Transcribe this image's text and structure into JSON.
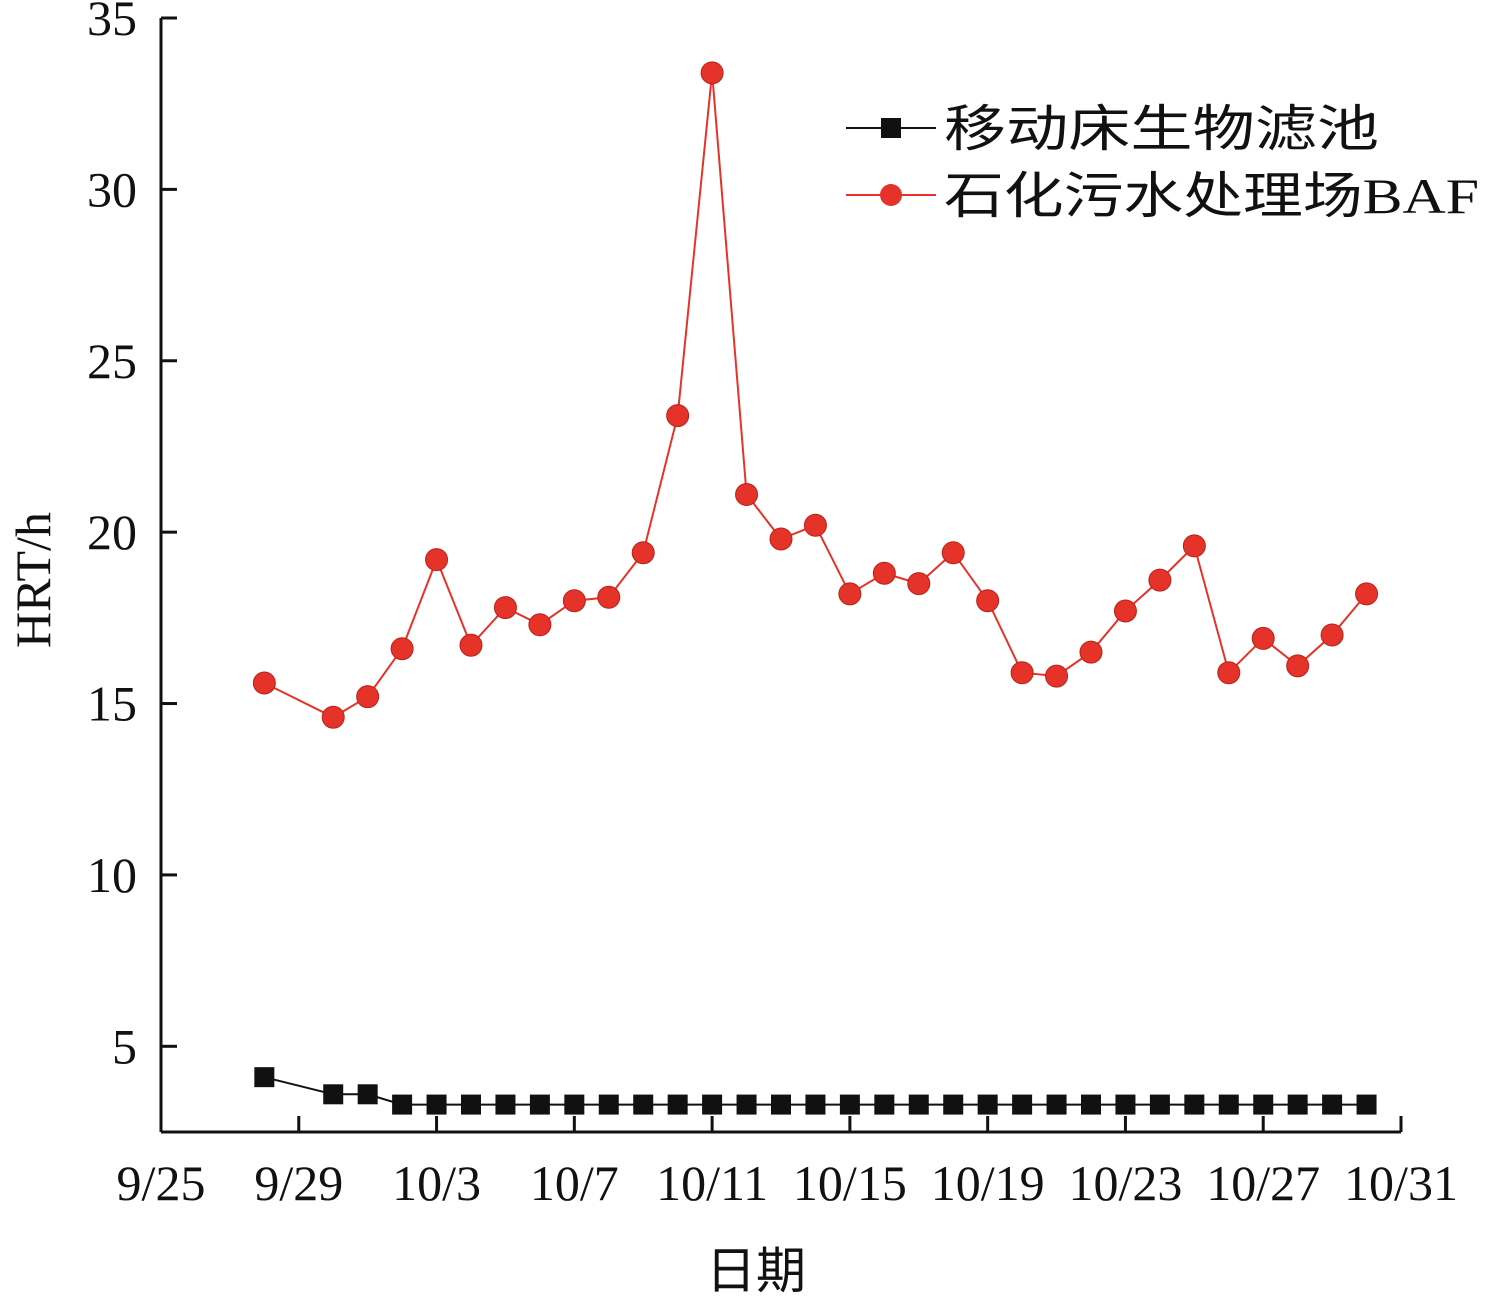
{
  "chart_data": {
    "type": "line",
    "title": "",
    "xlabel": "日期",
    "ylabel": "HRT/h",
    "x_ticks": [
      "9/25",
      "9/29",
      "10/3",
      "10/7",
      "10/11",
      "10/15",
      "10/19",
      "10/23",
      "10/27",
      "10/31"
    ],
    "y_ticks": [
      5,
      10,
      15,
      20,
      25,
      30,
      35
    ],
    "xlim": [
      "9/25",
      "10/31"
    ],
    "ylim": [
      2.5,
      35
    ],
    "grid": false,
    "legend_position": "top-right",
    "series": [
      {
        "name": "移动床生物滤池",
        "color": "#111111",
        "marker": "square",
        "points": [
          {
            "x": "9/28",
            "y": 4.1
          },
          {
            "x": "9/30",
            "y": 3.6
          },
          {
            "x": "10/1",
            "y": 3.6
          },
          {
            "x": "10/2",
            "y": 3.3
          },
          {
            "x": "10/3",
            "y": 3.3
          },
          {
            "x": "10/4",
            "y": 3.3
          },
          {
            "x": "10/5",
            "y": 3.3
          },
          {
            "x": "10/6",
            "y": 3.3
          },
          {
            "x": "10/7",
            "y": 3.3
          },
          {
            "x": "10/8",
            "y": 3.3
          },
          {
            "x": "10/9",
            "y": 3.3
          },
          {
            "x": "10/10",
            "y": 3.3
          },
          {
            "x": "10/11",
            "y": 3.3
          },
          {
            "x": "10/12",
            "y": 3.3
          },
          {
            "x": "10/13",
            "y": 3.3
          },
          {
            "x": "10/14",
            "y": 3.3
          },
          {
            "x": "10/15",
            "y": 3.3
          },
          {
            "x": "10/16",
            "y": 3.3
          },
          {
            "x": "10/17",
            "y": 3.3
          },
          {
            "x": "10/18",
            "y": 3.3
          },
          {
            "x": "10/19",
            "y": 3.3
          },
          {
            "x": "10/20",
            "y": 3.3
          },
          {
            "x": "10/21",
            "y": 3.3
          },
          {
            "x": "10/22",
            "y": 3.3
          },
          {
            "x": "10/23",
            "y": 3.3
          },
          {
            "x": "10/24",
            "y": 3.3
          },
          {
            "x": "10/25",
            "y": 3.3
          },
          {
            "x": "10/26",
            "y": 3.3
          },
          {
            "x": "10/27",
            "y": 3.3
          },
          {
            "x": "10/28",
            "y": 3.3
          },
          {
            "x": "10/29",
            "y": 3.3
          },
          {
            "x": "10/30",
            "y": 3.3
          }
        ]
      },
      {
        "name": "石化污水处理场BAF",
        "color": "#e53329",
        "marker": "circle",
        "points": [
          {
            "x": "9/28",
            "y": 15.6
          },
          {
            "x": "9/30",
            "y": 14.6
          },
          {
            "x": "10/1",
            "y": 15.2
          },
          {
            "x": "10/2",
            "y": 16.6
          },
          {
            "x": "10/3",
            "y": 19.2
          },
          {
            "x": "10/4",
            "y": 16.7
          },
          {
            "x": "10/5",
            "y": 17.8
          },
          {
            "x": "10/6",
            "y": 17.3
          },
          {
            "x": "10/7",
            "y": 18.0
          },
          {
            "x": "10/8",
            "y": 18.1
          },
          {
            "x": "10/9",
            "y": 19.4
          },
          {
            "x": "10/10",
            "y": 23.4
          },
          {
            "x": "10/11",
            "y": 33.4
          },
          {
            "x": "10/12",
            "y": 21.1
          },
          {
            "x": "10/13",
            "y": 19.8
          },
          {
            "x": "10/14",
            "y": 20.2
          },
          {
            "x": "10/15",
            "y": 18.2
          },
          {
            "x": "10/16",
            "y": 18.8
          },
          {
            "x": "10/17",
            "y": 18.5
          },
          {
            "x": "10/18",
            "y": 19.4
          },
          {
            "x": "10/19",
            "y": 18.0
          },
          {
            "x": "10/20",
            "y": 15.9
          },
          {
            "x": "10/21",
            "y": 15.8
          },
          {
            "x": "10/22",
            "y": 16.5
          },
          {
            "x": "10/23",
            "y": 17.7
          },
          {
            "x": "10/24",
            "y": 18.6
          },
          {
            "x": "10/25",
            "y": 19.6
          },
          {
            "x": "10/26",
            "y": 15.9
          },
          {
            "x": "10/27",
            "y": 16.9
          },
          {
            "x": "10/28",
            "y": 16.1
          },
          {
            "x": "10/29",
            "y": 17.0
          },
          {
            "x": "10/30",
            "y": 18.2
          }
        ]
      }
    ]
  }
}
